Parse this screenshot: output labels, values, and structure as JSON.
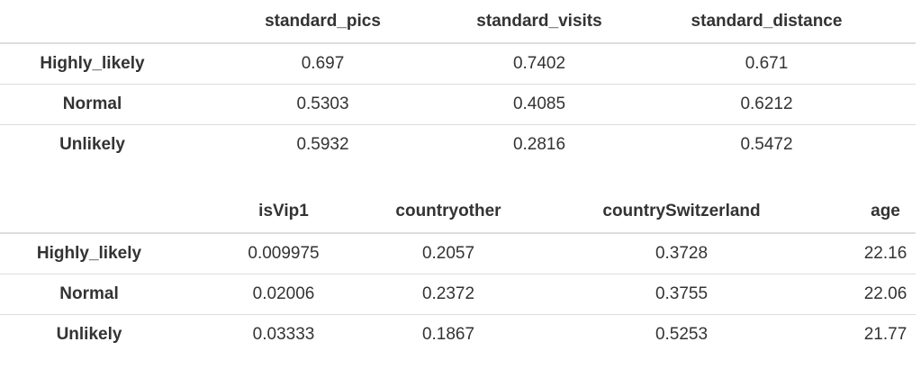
{
  "table1": {
    "columns": [
      "",
      "standard_pics",
      "standard_visits",
      "standard_distance"
    ],
    "rows": [
      {
        "label": "Highly_likely",
        "values": [
          "0.697",
          "0.7402",
          "0.671"
        ]
      },
      {
        "label": "Normal",
        "values": [
          "0.5303",
          "0.4085",
          "0.6212"
        ]
      },
      {
        "label": "Unlikely",
        "values": [
          "0.5932",
          "0.2816",
          "0.5472"
        ]
      }
    ]
  },
  "table2": {
    "columns": [
      "",
      "isVip1",
      "countryother",
      "countrySwitzerland",
      "age"
    ],
    "rows": [
      {
        "label": "Highly_likely",
        "values": [
          "0.009975",
          "0.2057",
          "0.3728",
          "22.16"
        ]
      },
      {
        "label": "Normal",
        "values": [
          "0.02006",
          "0.2372",
          "0.3755",
          "22.06"
        ]
      },
      {
        "label": "Unlikely",
        "values": [
          "0.03333",
          "0.1867",
          "0.5253",
          "21.77"
        ]
      }
    ]
  }
}
